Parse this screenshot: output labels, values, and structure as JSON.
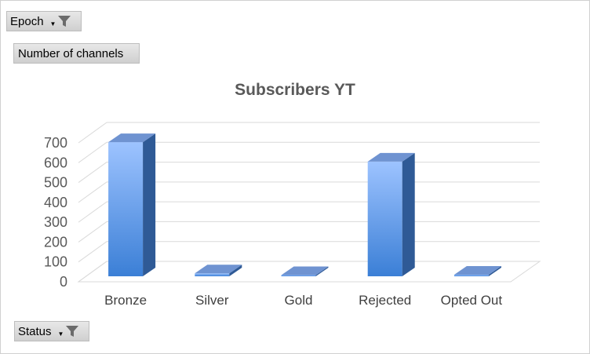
{
  "filters": {
    "epoch_label": "Epoch",
    "values_label": "Number of channels",
    "status_label": "Status",
    "funnel_icon": "filter-funnel-icon",
    "dropdown_icon": "dropdown-arrow-icon"
  },
  "chart_data": {
    "type": "bar",
    "title": "Subscribers YT",
    "categories": [
      "Bronze",
      "Silver",
      "Gold",
      "Rejected",
      "Opted Out"
    ],
    "values": [
      676,
      15,
      0,
      578,
      8
    ],
    "yticks": [
      0,
      100,
      200,
      300,
      400,
      500,
      600,
      700
    ],
    "ylim": [
      0,
      700
    ],
    "xlabel": "",
    "ylabel": "",
    "grid": true,
    "legend": "none",
    "style": "3d-column",
    "colors": {
      "bar_top_light": "#9dc3ff",
      "bar_bottom": "#3b7fd6",
      "bar_side": "#2f5a96",
      "bar_cap": "#6f93d1",
      "grid": "#d9d9d9",
      "text": "#595959"
    }
  }
}
